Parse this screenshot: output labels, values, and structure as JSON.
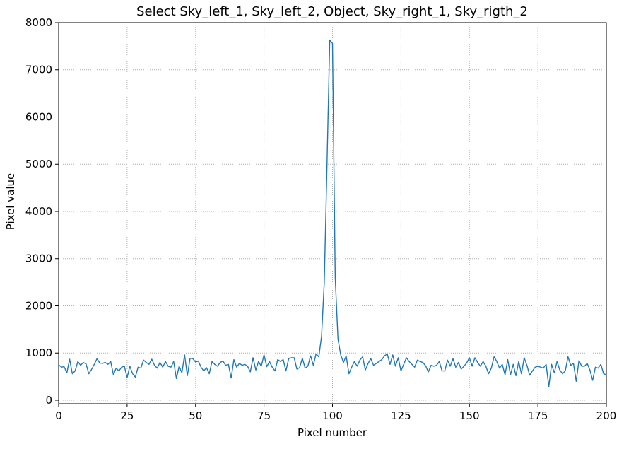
{
  "chart_data": {
    "type": "line",
    "title": "Select Sky_left_1, Sky_left_2, Object, Sky_right_1, Sky_rigth_2",
    "x_label": "Pixel number",
    "y_label": "Pixel value",
    "x": [
      0,
      1,
      2,
      3,
      4,
      5,
      6,
      7,
      8,
      9,
      10,
      11,
      12,
      13,
      14,
      15,
      16,
      17,
      18,
      19,
      20,
      21,
      22,
      23,
      24,
      25,
      26,
      27,
      28,
      29,
      30,
      31,
      32,
      33,
      34,
      35,
      36,
      37,
      38,
      39,
      40,
      41,
      42,
      43,
      44,
      45,
      46,
      47,
      48,
      49,
      50,
      51,
      52,
      53,
      54,
      55,
      56,
      57,
      58,
      59,
      60,
      61,
      62,
      63,
      64,
      65,
      66,
      67,
      68,
      69,
      70,
      71,
      72,
      73,
      74,
      75,
      76,
      77,
      78,
      79,
      80,
      81,
      82,
      83,
      84,
      85,
      86,
      87,
      88,
      89,
      90,
      91,
      92,
      93,
      94,
      95,
      96,
      97,
      98,
      99,
      100,
      101,
      102,
      103,
      104,
      105,
      106,
      107,
      108,
      109,
      110,
      111,
      112,
      113,
      114,
      115,
      116,
      117,
      118,
      119,
      120,
      121,
      122,
      123,
      124,
      125,
      126,
      127,
      128,
      129,
      130,
      131,
      132,
      133,
      134,
      135,
      136,
      137,
      138,
      139,
      140,
      141,
      142,
      143,
      144,
      145,
      146,
      147,
      148,
      149,
      150,
      151,
      152,
      153,
      154,
      155,
      156,
      157,
      158,
      159,
      160,
      161,
      162,
      163,
      164,
      165,
      166,
      167,
      168,
      169,
      170,
      171,
      172,
      173,
      174,
      175,
      176,
      177,
      178,
      179,
      180,
      181,
      182,
      183,
      184,
      185,
      186,
      187,
      188,
      189,
      190,
      191,
      192,
      193,
      194,
      195,
      196,
      197,
      198,
      199,
      200
    ],
    "series": [
      {
        "name": "Pixel value",
        "color": "#1f77b4",
        "values": [
          750,
          700,
          710,
          580,
          870,
          560,
          620,
          820,
          740,
          800,
          770,
          560,
          650,
          760,
          880,
          790,
          780,
          800,
          760,
          820,
          540,
          680,
          620,
          700,
          720,
          480,
          720,
          560,
          490,
          700,
          680,
          850,
          800,
          760,
          870,
          740,
          680,
          800,
          700,
          820,
          720,
          700,
          820,
          460,
          720,
          580,
          960,
          520,
          890,
          880,
          810,
          830,
          700,
          620,
          690,
          560,
          820,
          760,
          720,
          800,
          830,
          740,
          760,
          470,
          860,
          700,
          780,
          740,
          760,
          720,
          600,
          900,
          640,
          820,
          720,
          960,
          710,
          820,
          700,
          620,
          860,
          820,
          860,
          620,
          880,
          900,
          900,
          660,
          690,
          890,
          680,
          720,
          940,
          740,
          980,
          920,
          1350,
          2500,
          5000,
          7630,
          7560,
          2600,
          1300,
          960,
          800,
          940,
          560,
          700,
          820,
          720,
          850,
          920,
          640,
          780,
          880,
          740,
          780,
          820,
          860,
          940,
          980,
          760,
          960,
          720,
          900,
          620,
          760,
          900,
          820,
          760,
          700,
          850,
          820,
          800,
          730,
          600,
          740,
          720,
          740,
          820,
          620,
          620,
          850,
          720,
          880,
          700,
          800,
          660,
          720,
          790,
          900,
          720,
          900,
          800,
          720,
          820,
          720,
          560,
          680,
          920,
          820,
          680,
          760,
          540,
          860,
          540,
          760,
          520,
          820,
          560,
          900,
          740,
          530,
          620,
          700,
          720,
          700,
          680,
          760,
          290,
          760,
          580,
          820,
          640,
          560,
          620,
          920,
          740,
          780,
          400,
          840,
          720,
          720,
          780,
          640,
          420,
          700,
          680,
          760,
          560,
          540
        ]
      }
    ],
    "xlim": [
      0,
      200
    ],
    "xticks": [
      0,
      25,
      50,
      75,
      100,
      125,
      150,
      175,
      200
    ],
    "ylim": [
      -75,
      8000
    ],
    "yticks": [
      0,
      1000,
      2000,
      3000,
      4000,
      5000,
      6000,
      7000,
      8000
    ],
    "grid": true
  }
}
